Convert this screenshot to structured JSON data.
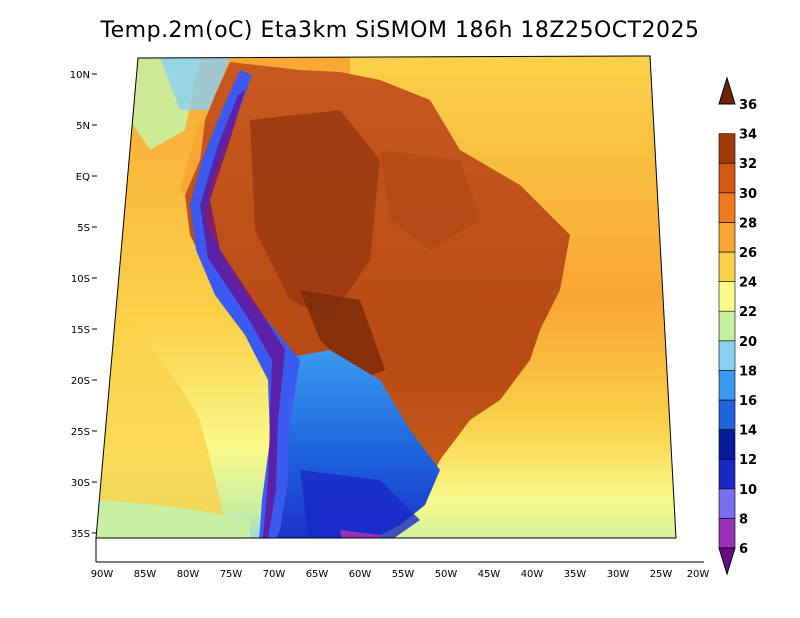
{
  "title": "Temp.2m(oC) Eta3km SiSMOM 186h 18Z25OCT2025",
  "lat_labels": [
    "10N",
    "5N",
    "EQ",
    "5S",
    "10S",
    "15S",
    "20S",
    "25S",
    "30S",
    "35S"
  ],
  "lon_labels": [
    "90W",
    "85W",
    "80W",
    "75W",
    "70W",
    "65W",
    "60W",
    "55W",
    "50W",
    "45W",
    "40W",
    "35W",
    "30W",
    "25W",
    "20W"
  ],
  "colorbar": {
    "labels": [
      "6",
      "8",
      "10",
      "12",
      "14",
      "16",
      "18",
      "20",
      "22",
      "24",
      "26",
      "28",
      "30",
      "32",
      "34",
      "36"
    ],
    "colors": [
      "#6a0a8a",
      "#9a30b8",
      "#7a6ef0",
      "#1a28c8",
      "#0a1aa0",
      "#1e64dc",
      "#3a9af0",
      "#8ad0f5",
      "#c8f0a0",
      "#fafa8a",
      "#fad24a",
      "#faa632",
      "#f07a1e",
      "#d25a14",
      "#a03a0a",
      "#6e2208"
    ]
  },
  "colors": {
    "ocean_warm": "#faa632",
    "ocean_mid": "#fad24a",
    "ocean_cool": "#fafa8a",
    "ocean_cold": "#c8f0a0",
    "land_hot": "#c8581e",
    "land_very_hot": "#9a3a10",
    "andes": "#3a5af0",
    "patagonia": "#3a9af0"
  }
}
